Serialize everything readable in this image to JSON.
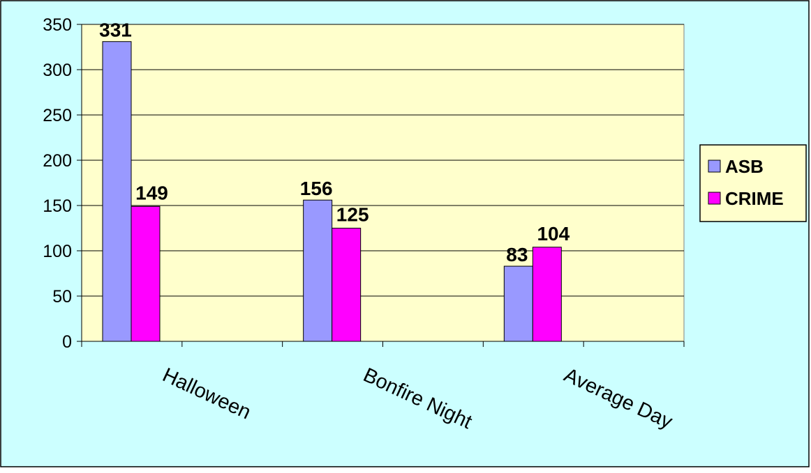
{
  "chart_data": {
    "type": "bar",
    "title": "",
    "xlabel": "",
    "ylabel": "",
    "categories": [
      "Halloween",
      "Bonfire Night",
      "Average Day"
    ],
    "series": [
      {
        "name": "ASB",
        "values": [
          331,
          156,
          83
        ],
        "color": "#9999ff"
      },
      {
        "name": "CRIME",
        "values": [
          149,
          125,
          104
        ],
        "color": "#ff00ff"
      }
    ],
    "ylim": [
      0,
      350
    ],
    "yticks": [
      0,
      50,
      100,
      150,
      200,
      250,
      300,
      350
    ],
    "grid": true,
    "legend_position": "right",
    "data_labels": true,
    "colors": {
      "background": "#ccffff",
      "plot_area": "#ffffcc",
      "legend_background": "#ffffcc",
      "gridline": "#000000"
    }
  }
}
